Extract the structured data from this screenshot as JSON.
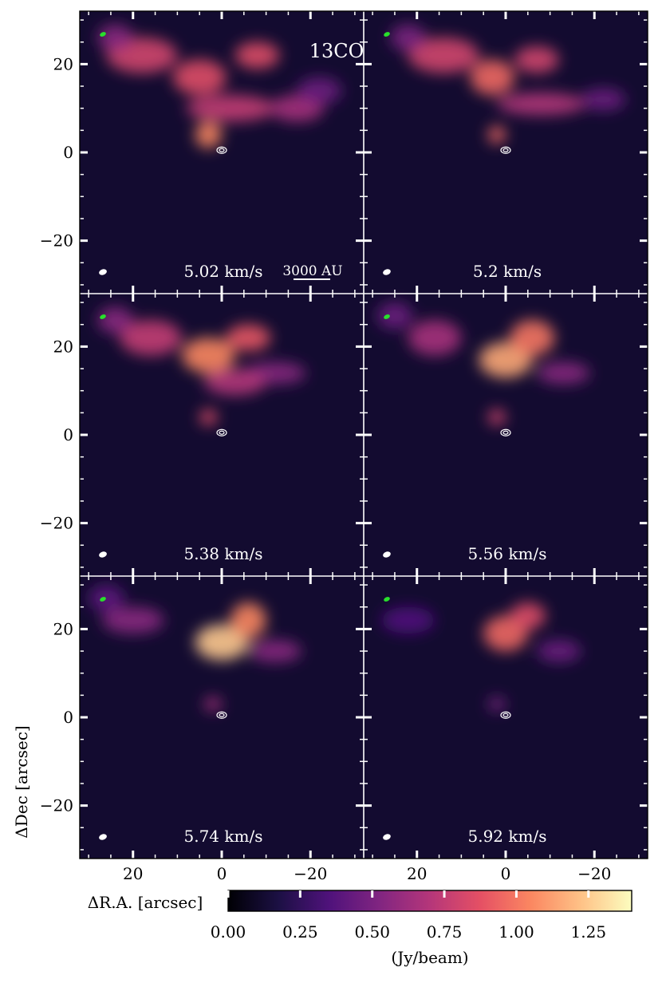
{
  "chart_data": {
    "type": "heatmap",
    "title": "",
    "molecule_label": "13CO",
    "xlabel": "ΔR.A. [arcsec]",
    "ylabel": "ΔDec [arcsec]",
    "xlim": [
      32,
      -32
    ],
    "ylim": [
      -32,
      32
    ],
    "x_ticks": [
      20,
      0,
      -20
    ],
    "x_tick_labels": [
      "20",
      "0",
      "−20"
    ],
    "y_ticks": [
      20,
      0,
      -20
    ],
    "y_tick_labels": [
      "20",
      "0",
      "−20"
    ],
    "scalebar_label": "3000 AU",
    "colorbar": {
      "label": "(Jy/beam)",
      "colormap": "magma",
      "range": [
        0.0,
        1.4
      ],
      "ticks": [
        0.0,
        0.25,
        0.5,
        0.75,
        1.0,
        1.25
      ],
      "tick_labels": [
        "0.00",
        "0.25",
        "0.50",
        "0.75",
        "1.00",
        "1.25"
      ],
      "stops": [
        "#000004",
        "#1c1044",
        "#4f127b",
        "#812581",
        "#b5367a",
        "#e55064",
        "#fb8761",
        "#fec287",
        "#fcfdbf"
      ]
    },
    "panels": [
      {
        "velocity": "5.02 km/s",
        "blobs": [
          {
            "x": 18,
            "y": 22,
            "sx": 8,
            "sy": 4,
            "v": 0.8
          },
          {
            "x": 5,
            "y": 17,
            "sx": 6,
            "sy": 4,
            "v": 0.85
          },
          {
            "x": -8,
            "y": 22,
            "sx": 5,
            "sy": 3,
            "v": 0.85
          },
          {
            "x": -2,
            "y": 10,
            "sx": 10,
            "sy": 3,
            "v": 0.75
          },
          {
            "x": -17,
            "y": 10,
            "sx": 6,
            "sy": 3,
            "v": 0.65
          },
          {
            "x": 3,
            "y": 4,
            "sx": 3,
            "sy": 3,
            "v": 1.05
          },
          {
            "x": 24,
            "y": 26,
            "sx": 4,
            "sy": 3,
            "v": 0.55
          },
          {
            "x": -22,
            "y": 14,
            "sx": 5,
            "sy": 3,
            "v": 0.45
          }
        ]
      },
      {
        "velocity": "5.2 km/s",
        "blobs": [
          {
            "x": 14,
            "y": 22,
            "sx": 8,
            "sy": 4,
            "v": 0.8
          },
          {
            "x": 3,
            "y": 17,
            "sx": 5,
            "sy": 4,
            "v": 0.95
          },
          {
            "x": -7,
            "y": 21,
            "sx": 5,
            "sy": 3,
            "v": 0.8
          },
          {
            "x": -8,
            "y": 11,
            "sx": 10,
            "sy": 2.5,
            "v": 0.7
          },
          {
            "x": -22,
            "y": 12,
            "sx": 5,
            "sy": 2.5,
            "v": 0.45
          },
          {
            "x": 2,
            "y": 4,
            "sx": 2,
            "sy": 2,
            "v": 0.95
          },
          {
            "x": 22,
            "y": 26,
            "sx": 4,
            "sy": 3,
            "v": 0.5
          }
        ]
      },
      {
        "velocity": "5.38 km/s",
        "blobs": [
          {
            "x": 16,
            "y": 22,
            "sx": 7,
            "sy": 4,
            "v": 0.75
          },
          {
            "x": 3,
            "y": 18,
            "sx": 6,
            "sy": 4,
            "v": 1.05
          },
          {
            "x": -6,
            "y": 22,
            "sx": 5,
            "sy": 3,
            "v": 0.9
          },
          {
            "x": -12,
            "y": 14,
            "sx": 7,
            "sy": 2.5,
            "v": 0.55
          },
          {
            "x": -3,
            "y": 12,
            "sx": 7,
            "sy": 3,
            "v": 0.7
          },
          {
            "x": 3,
            "y": 4,
            "sx": 2,
            "sy": 1.8,
            "v": 0.85
          },
          {
            "x": 24,
            "y": 26,
            "sx": 4,
            "sy": 3,
            "v": 0.55
          }
        ]
      },
      {
        "velocity": "5.56 km/s",
        "blobs": [
          {
            "x": 16,
            "y": 22,
            "sx": 6,
            "sy": 4,
            "v": 0.65
          },
          {
            "x": 0,
            "y": 17,
            "sx": 6,
            "sy": 4,
            "v": 1.15
          },
          {
            "x": -6,
            "y": 22,
            "sx": 5,
            "sy": 4,
            "v": 1.0
          },
          {
            "x": -13,
            "y": 14,
            "sx": 6,
            "sy": 2.5,
            "v": 0.55
          },
          {
            "x": 2,
            "y": 4,
            "sx": 2,
            "sy": 1.8,
            "v": 0.8
          },
          {
            "x": 25,
            "y": 27,
            "sx": 4,
            "sy": 3,
            "v": 0.45
          }
        ]
      },
      {
        "velocity": "5.74 km/s",
        "blobs": [
          {
            "x": 20,
            "y": 22,
            "sx": 7,
            "sy": 3,
            "v": 0.55
          },
          {
            "x": 0,
            "y": 17,
            "sx": 6,
            "sy": 4,
            "v": 1.25
          },
          {
            "x": -6,
            "y": 22,
            "sx": 4,
            "sy": 4,
            "v": 1.05
          },
          {
            "x": -12,
            "y": 15,
            "sx": 6,
            "sy": 2.5,
            "v": 0.55
          },
          {
            "x": 2,
            "y": 3,
            "sx": 2,
            "sy": 1.6,
            "v": 0.65
          },
          {
            "x": 26,
            "y": 27,
            "sx": 4,
            "sy": 3,
            "v": 0.4
          }
        ]
      },
      {
        "velocity": "5.92 km/s",
        "blobs": [
          {
            "x": 22,
            "y": 22,
            "sx": 6,
            "sy": 3,
            "v": 0.35
          },
          {
            "x": 0,
            "y": 19,
            "sx": 5,
            "sy": 4,
            "v": 0.95
          },
          {
            "x": -5,
            "y": 23,
            "sx": 4,
            "sy": 3,
            "v": 0.85
          },
          {
            "x": -12,
            "y": 15,
            "sx": 5,
            "sy": 2.5,
            "v": 0.45
          },
          {
            "x": 2,
            "y": 3,
            "sx": 2,
            "sy": 1.6,
            "v": 0.5
          }
        ]
      }
    ]
  }
}
